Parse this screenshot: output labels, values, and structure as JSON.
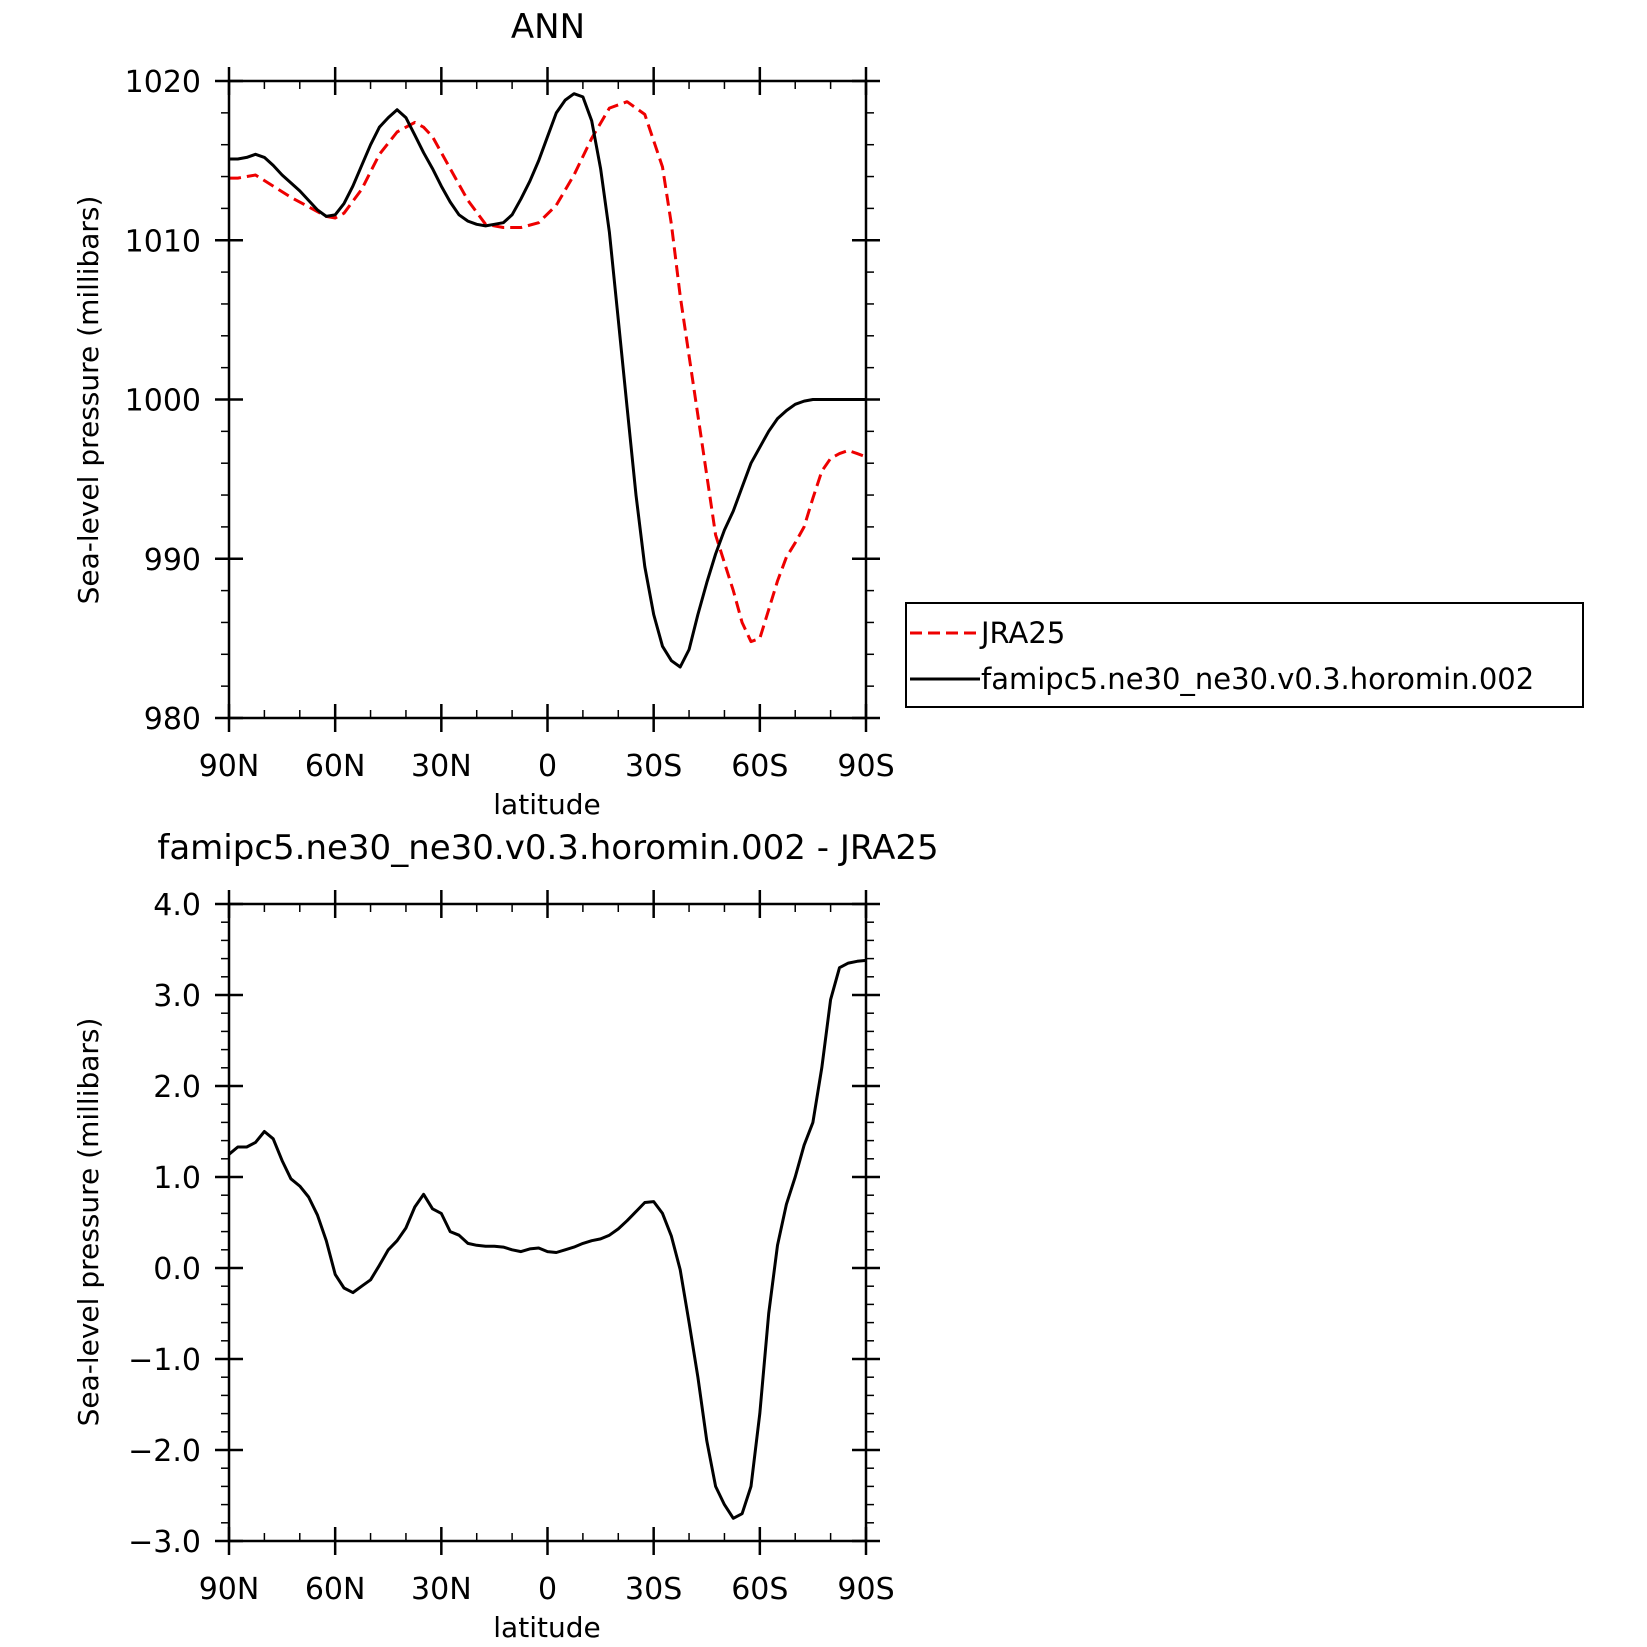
{
  "colors": {
    "background": "#ffffff",
    "axis": "#000000",
    "model_line": "#000000",
    "obs_line": "#ee0000"
  },
  "chart_data": [
    {
      "type": "line",
      "title": "ANN",
      "xlabel": "latitude",
      "ylabel": "Sea-level pressure (millibars)",
      "xlim": [
        90,
        -90
      ],
      "ylim": [
        980,
        1020
      ],
      "x_ticks": [
        90,
        60,
        30,
        0,
        -30,
        -60,
        -90
      ],
      "x_tick_labels": [
        "90N",
        "60N",
        "30N",
        "0",
        "30S",
        "60S",
        "90S"
      ],
      "y_ticks": [
        980,
        990,
        1000,
        1010,
        1020
      ],
      "y_tick_labels": [
        "980",
        "990",
        "1000",
        "1010",
        "1020"
      ],
      "legend_position": "right",
      "series": [
        {
          "name": "JRA25",
          "style": "dashed",
          "color": "#ee0000",
          "x": [
            90,
            87.5,
            82.5,
            77.5,
            72.5,
            67.5,
            62.5,
            60,
            57.5,
            52.5,
            47.5,
            42.5,
            37.5,
            35,
            32.5,
            27.5,
            22.5,
            17.5,
            12.5,
            7.5,
            2.5,
            -2.5,
            -7.5,
            -12.5,
            -17.5,
            -22.5,
            -27.5,
            -32.5,
            -35,
            -37.5,
            -42.5,
            -47.5,
            -52.5,
            -55,
            -57.5,
            -60,
            -62.5,
            -65,
            -67.5,
            -70,
            -72.5,
            -75,
            -77.5,
            -80,
            -82.5,
            -85,
            -87.5,
            -90
          ],
          "values": [
            1013.9,
            1013.9,
            1014.1,
            1013.4,
            1012.7,
            1012.1,
            1011.5,
            1011.4,
            1011.7,
            1013.2,
            1015.4,
            1016.8,
            1017.4,
            1017.1,
            1016.5,
            1014.5,
            1012.5,
            1011.0,
            1010.8,
            1010.8,
            1011.1,
            1012.2,
            1014.1,
            1016.4,
            1018.3,
            1018.7,
            1017.9,
            1014.6,
            1011.0,
            1006.5,
            999.0,
            991.5,
            988.0,
            986.0,
            984.8,
            985.0,
            986.8,
            988.6,
            990.1,
            991.0,
            992.0,
            993.8,
            995.5,
            996.3,
            996.6,
            996.8,
            996.6,
            996.4
          ]
        },
        {
          "name": "famipc5.ne30_ne30.v0.3.horomin.002",
          "style": "solid",
          "color": "#000000",
          "x": [
            90,
            87.5,
            85,
            82.5,
            80,
            77.5,
            75,
            72.5,
            70,
            67.5,
            65,
            62.5,
            60,
            57.5,
            55,
            52.5,
            50,
            47.5,
            45,
            42.5,
            40,
            37.5,
            35,
            32.5,
            30,
            27.5,
            25,
            22.5,
            20,
            17.5,
            15,
            12.5,
            10,
            7.5,
            5,
            2.5,
            0,
            -2.5,
            -5,
            -7.5,
            -10,
            -12.5,
            -15,
            -17.5,
            -20,
            -22.5,
            -25,
            -27.5,
            -30,
            -32.5,
            -35,
            -37.5,
            -40,
            -42.5,
            -45,
            -47.5,
            -50,
            -52.5,
            -55,
            -57.5,
            -60,
            -62.5,
            -65,
            -67.5,
            -70,
            -72.5,
            -75,
            -77.5,
            -80,
            -82.5,
            -85,
            -87.5,
            -90
          ],
          "values": [
            1015.1,
            1015.1,
            1015.2,
            1015.4,
            1015.2,
            1014.7,
            1014.1,
            1013.6,
            1013.1,
            1012.5,
            1011.9,
            1011.5,
            1011.6,
            1012.3,
            1013.4,
            1014.7,
            1016.0,
            1017.1,
            1017.7,
            1018.2,
            1017.7,
            1016.6,
            1015.5,
            1014.5,
            1013.4,
            1012.4,
            1011.6,
            1011.2,
            1011.0,
            1010.9,
            1011.0,
            1011.1,
            1011.6,
            1012.6,
            1013.7,
            1015.0,
            1016.5,
            1018.0,
            1018.8,
            1019.2,
            1019.0,
            1017.5,
            1014.5,
            1010.5,
            1005.0,
            999.5,
            994.0,
            989.5,
            986.5,
            984.5,
            983.6,
            983.2,
            984.3,
            986.5,
            988.5,
            990.3,
            991.8,
            993.0,
            994.5,
            996.0,
            997.0,
            998.0,
            998.8,
            999.3,
            999.7,
            999.9,
            1000.0,
            1000.0,
            1000.0,
            1000.0,
            1000.0,
            1000.0,
            1000.0
          ]
        }
      ]
    },
    {
      "type": "line",
      "title": "famipc5.ne30_ne30.v0.3.horomin.002 - JRA25",
      "xlabel": "latitude",
      "ylabel": "Sea-level pressure (millibars)",
      "xlim": [
        90,
        -90
      ],
      "ylim": [
        -3.0,
        4.0
      ],
      "x_ticks": [
        90,
        60,
        30,
        0,
        -30,
        -60,
        -90
      ],
      "x_tick_labels": [
        "90N",
        "60N",
        "30N",
        "0",
        "30S",
        "60S",
        "90S"
      ],
      "y_ticks": [
        -3.0,
        -2.0,
        -1.0,
        0.0,
        1.0,
        2.0,
        3.0,
        4.0
      ],
      "y_tick_labels": [
        "−3.0",
        "−2.0",
        "−1.0",
        "0.0",
        "1.0",
        "2.0",
        "3.0",
        "4.0"
      ],
      "series": [
        {
          "style": "solid",
          "color": "#000000",
          "x": [
            90,
            87.5,
            85,
            82.5,
            80,
            77.5,
            75,
            72.5,
            70,
            67.5,
            65,
            62.5,
            60,
            57.5,
            55,
            52.5,
            50,
            47.5,
            45,
            42.5,
            40,
            37.5,
            35,
            32.5,
            30,
            27.5,
            25,
            22.5,
            20,
            17.5,
            15,
            12.5,
            10,
            7.5,
            5,
            2.5,
            0,
            -2.5,
            -5,
            -7.5,
            -10,
            -12.5,
            -15,
            -17.5,
            -20,
            -22.5,
            -25,
            -27.5,
            -30,
            -32.5,
            -35,
            -37.5,
            -40,
            -42.5,
            -45,
            -47.5,
            -50,
            -52.5,
            -55,
            -57.5,
            -60,
            -62.5,
            -65,
            -67.5,
            -70,
            -72.5,
            -75,
            -77.5,
            -80,
            -82.5,
            -85,
            -87.5,
            -90
          ],
          "values": [
            1.25,
            1.33,
            1.33,
            1.38,
            1.5,
            1.42,
            1.18,
            0.98,
            0.9,
            0.78,
            0.58,
            0.3,
            -0.07,
            -0.22,
            -0.27,
            -0.2,
            -0.13,
            0.03,
            0.2,
            0.3,
            0.44,
            0.67,
            0.81,
            0.65,
            0.6,
            0.4,
            0.36,
            0.27,
            0.25,
            0.24,
            0.24,
            0.23,
            0.2,
            0.18,
            0.21,
            0.22,
            0.18,
            0.17,
            0.2,
            0.23,
            0.27,
            0.3,
            0.32,
            0.36,
            0.43,
            0.52,
            0.62,
            0.72,
            0.73,
            0.6,
            0.35,
            -0.02,
            -0.6,
            -1.2,
            -1.9,
            -2.4,
            -2.6,
            -2.75,
            -2.7,
            -2.4,
            -1.6,
            -0.5,
            0.25,
            0.7,
            1.0,
            1.35,
            1.6,
            2.2,
            2.95,
            3.3,
            3.35,
            3.37,
            3.38
          ]
        }
      ]
    }
  ]
}
